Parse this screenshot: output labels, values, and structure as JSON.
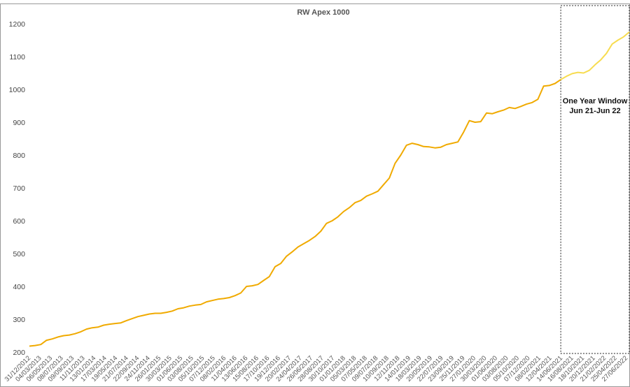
{
  "chart_data": {
    "type": "line",
    "title": "RW Apex 1000",
    "xlabel": "",
    "ylabel": "",
    "ylim": [
      200,
      1200
    ],
    "yticks": [
      200,
      300,
      400,
      500,
      600,
      700,
      800,
      900,
      1000,
      1100,
      1200
    ],
    "grid": false,
    "legend": "none",
    "x_tick_labels": [
      "31/12/2012",
      "04/03/2013",
      "06/05/2013",
      "08/07/2013",
      "09/09/2013",
      "11/11/2013",
      "13/01/2014",
      "17/03/2014",
      "19/05/2014",
      "21/07/2014",
      "22/09/2014",
      "24/11/2014",
      "26/01/2015",
      "30/03/2015",
      "01/06/2015",
      "03/08/2015",
      "05/10/2015",
      "07/12/2015",
      "08/02/2016",
      "11/04/2016",
      "13/06/2016",
      "15/08/2016",
      "17/10/2016",
      "19/12/2016",
      "20/02/2017",
      "24/04/2017",
      "26/06/2017",
      "28/08/2017",
      "30/10/2017",
      "01/01/2018",
      "05/03/2018",
      "07/05/2018",
      "09/07/2018",
      "10/09/2018",
      "12/11/2018",
      "14/01/2019",
      "18/03/2019",
      "20/05/2019",
      "22/07/2019",
      "23/09/2019",
      "25/11/2019",
      "27/01/2020",
      "30/03/2020",
      "01/06/2020",
      "03/08/2020",
      "05/10/2020",
      "07/12/2020",
      "08/02/2021",
      "12/04/2021",
      "14/06/2021",
      "16/08/2021",
      "18/10/2021",
      "20/12/2021",
      "21/02/2022",
      "25/04/2022",
      "27/06/2022"
    ],
    "series": [
      {
        "color": "#f0aa00",
        "values": [
          218,
          220,
          223,
          236,
          240,
          246,
          250,
          252,
          256,
          262,
          270,
          274,
          276,
          282,
          285,
          287,
          289,
          296,
          302,
          308,
          312,
          316,
          318,
          318,
          321,
          325,
          332,
          335,
          340,
          343,
          345,
          353,
          357,
          361,
          363,
          366,
          372,
          380,
          400,
          402,
          406,
          418,
          430,
          460,
          470,
          492,
          505,
          520,
          530,
          540,
          552,
          568,
          592,
          600,
          612,
          628,
          640,
          655,
          662,
          675,
          682,
          690,
          710,
          730,
          775,
          800,
          830,
          836,
          832,
          826,
          825,
          822,
          824,
          832,
          836,
          840,
          870,
          905,
          900,
          902,
          928,
          926,
          932,
          937,
          945,
          942,
          948,
          955,
          960,
          970,
          1010,
          1012,
          1018,
          1030
        ]
      },
      {
        "color": "#f7dc50",
        "values": [
          1030,
          1040,
          1048,
          1052,
          1050,
          1058,
          1075,
          1090,
          1110,
          1138,
          1150,
          1160,
          1175
        ]
      }
    ],
    "annotations": {
      "window_label_line1": "One Year Window",
      "window_label_line2": "Jun 21-Jun 22"
    },
    "colors": {
      "main_line": "#f0aa00",
      "window_line": "#f7dc50",
      "window_border": "#222222",
      "frame": "#999999"
    }
  }
}
